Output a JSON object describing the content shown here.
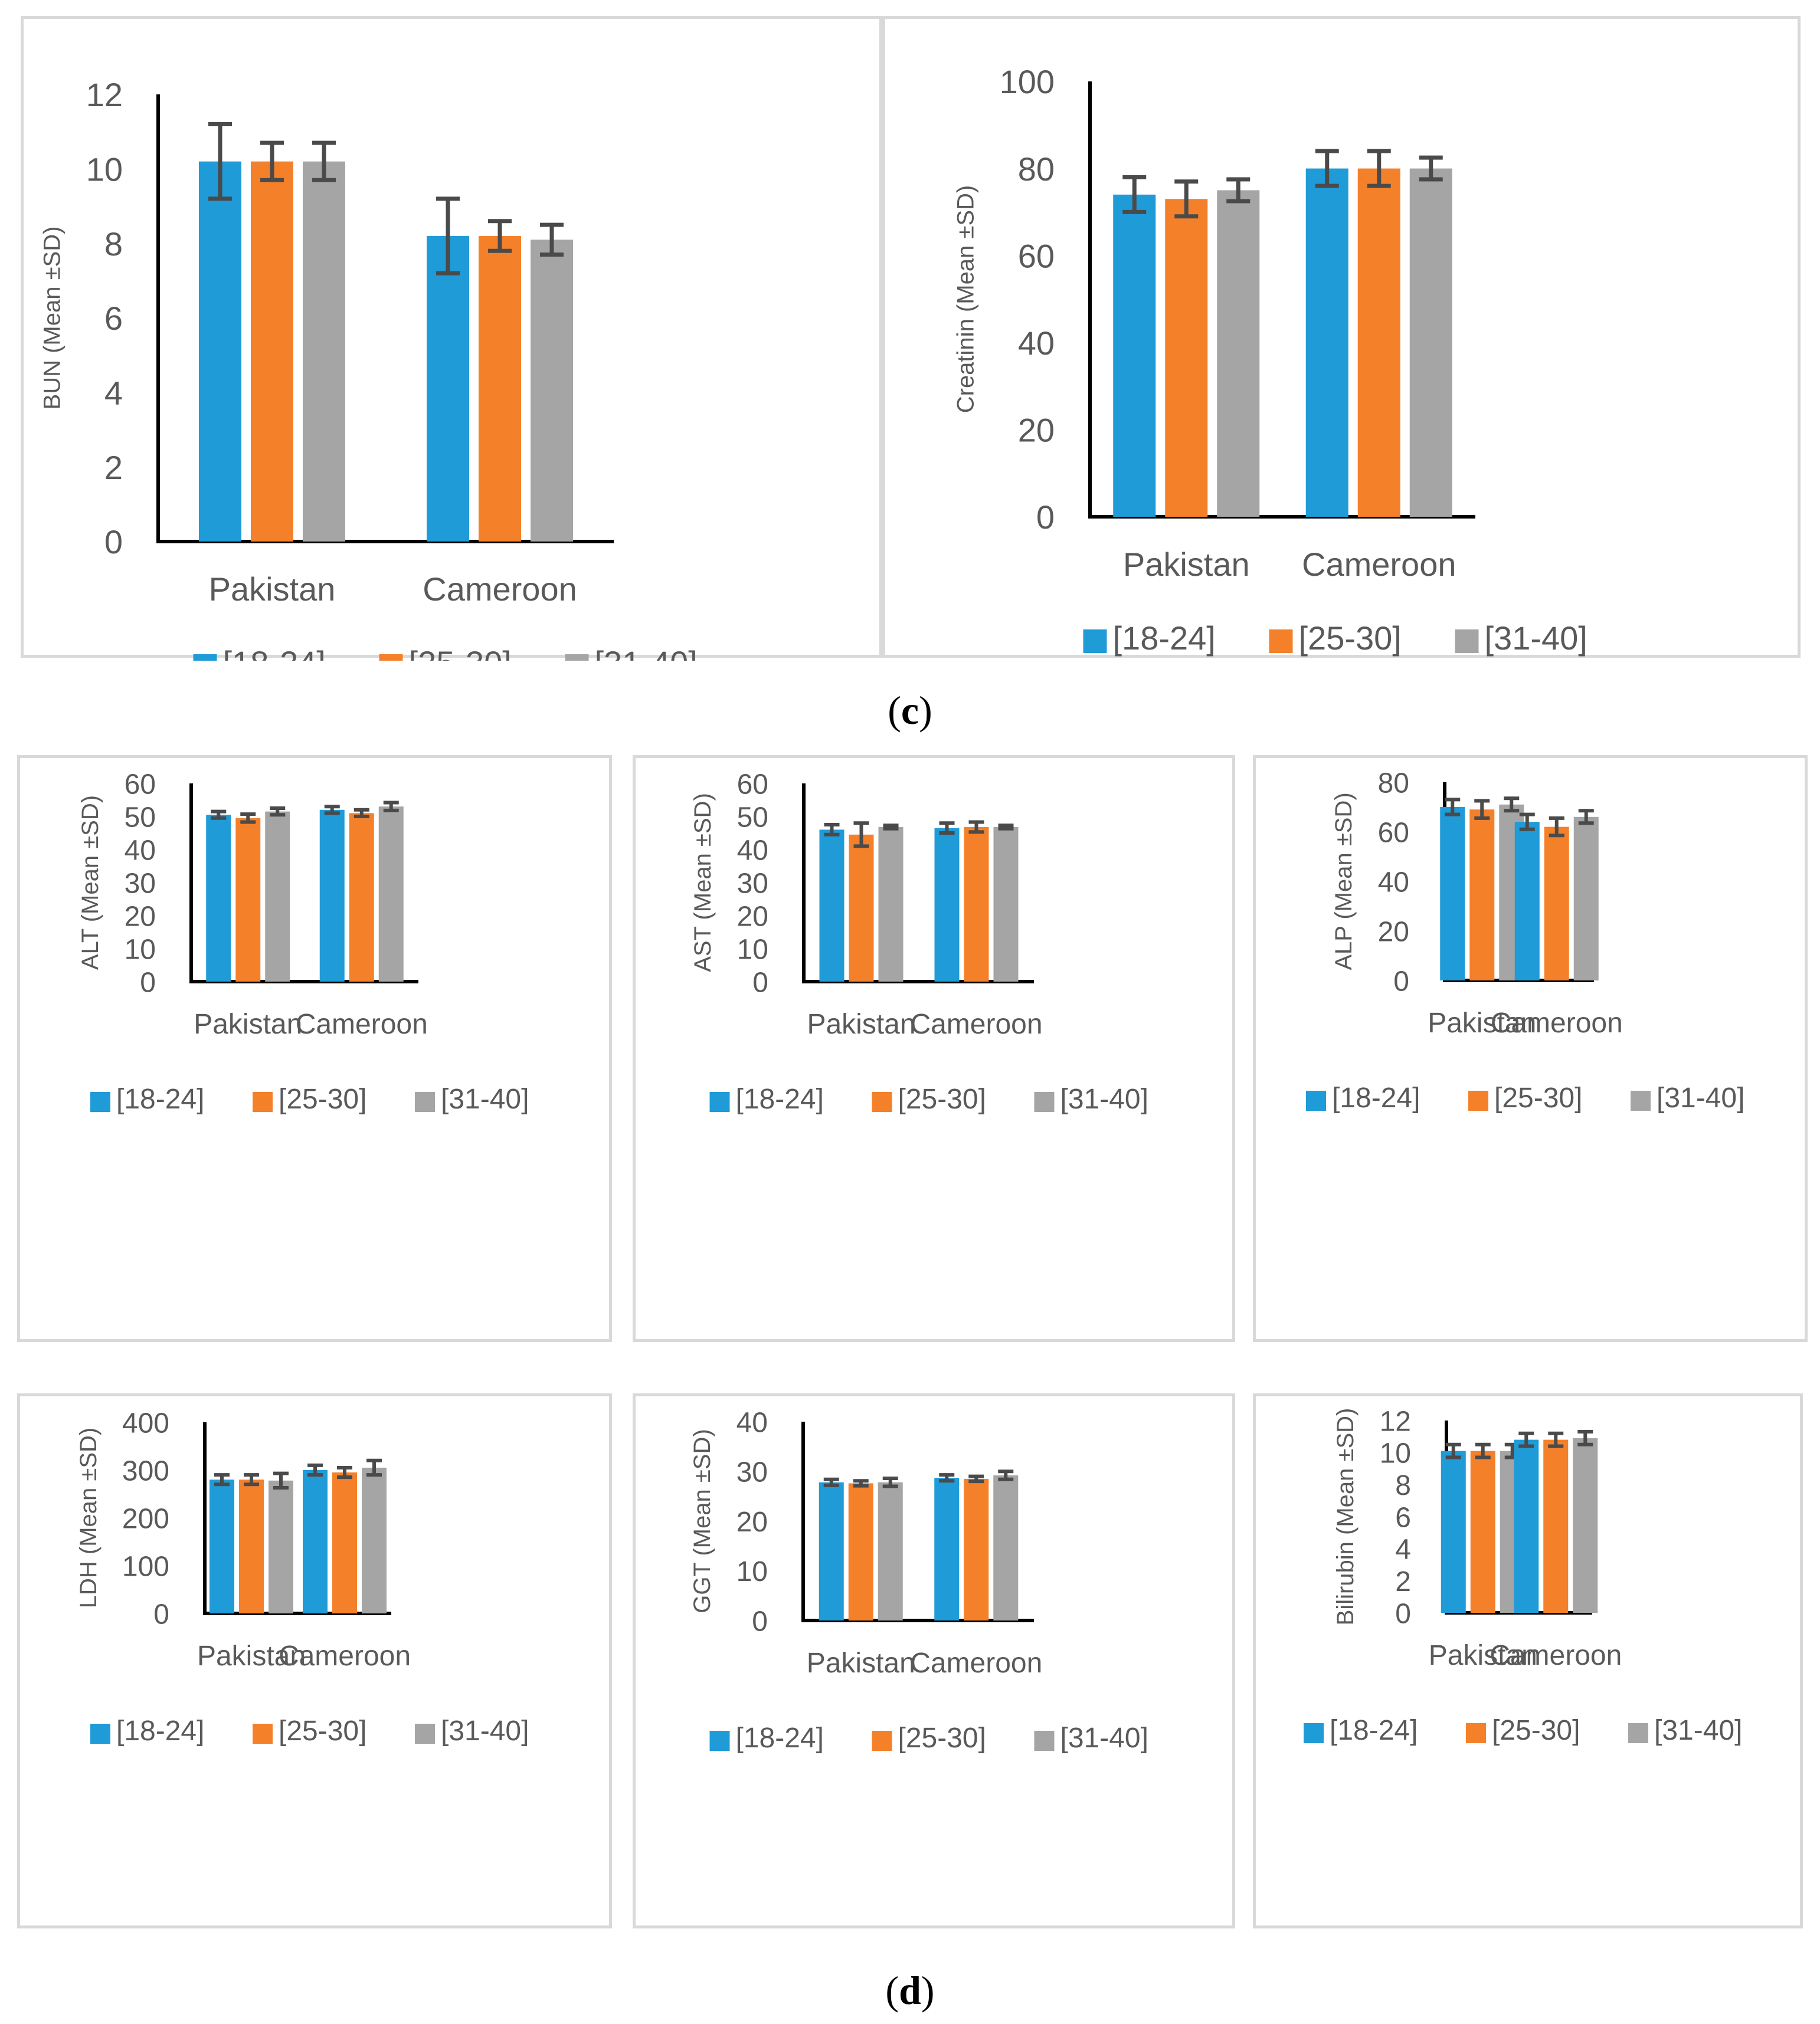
{
  "colors": {
    "a": "#1f9bd7",
    "b": "#f5802a",
    "c": "#a5a5a5",
    "err": "#4a4a4a",
    "axis": "#000000",
    "text": "#595959"
  },
  "legend": [
    "[18-24]",
    "[25-30]",
    "[31-40]"
  ],
  "captions": {
    "c": {
      "open": "(",
      "letter": "c",
      "close": ")"
    },
    "d": {
      "open": "(",
      "letter": "d",
      "close": ")"
    }
  },
  "chart_data": [
    {
      "id": "bun",
      "type": "bar",
      "ylabel": "BUN (Mean ±SD)",
      "ylim": [
        0,
        12
      ],
      "yticks": [
        0,
        2,
        4,
        6,
        8,
        10,
        12
      ],
      "categories": [
        "Pakistan",
        "Cameroon"
      ],
      "series": [
        {
          "name": "[18-24]",
          "values": [
            10.2,
            8.2
          ],
          "errors": [
            1.0,
            1.0
          ]
        },
        {
          "name": "[25-30]",
          "values": [
            10.2,
            8.2
          ],
          "errors": [
            0.5,
            0.4
          ]
        },
        {
          "name": "[31-40]",
          "values": [
            10.2,
            8.1
          ],
          "errors": [
            0.5,
            0.4
          ]
        }
      ]
    },
    {
      "id": "creatinin",
      "type": "bar",
      "ylabel": "Creatinin (Mean ±SD)",
      "ylim": [
        0,
        100
      ],
      "yticks": [
        0,
        20,
        40,
        60,
        80,
        100
      ],
      "categories": [
        "Pakistan",
        "Cameroon"
      ],
      "series": [
        {
          "name": "[18-24]",
          "values": [
            74,
            80
          ],
          "errors": [
            4,
            4
          ]
        },
        {
          "name": "[25-30]",
          "values": [
            73,
            80
          ],
          "errors": [
            4,
            4
          ]
        },
        {
          "name": "[31-40]",
          "values": [
            75,
            80
          ],
          "errors": [
            2.5,
            2.5
          ]
        }
      ]
    },
    {
      "id": "alt",
      "type": "bar",
      "ylabel": "ALT (Mean ±SD)",
      "ylim": [
        0,
        60
      ],
      "yticks": [
        0,
        10,
        20,
        30,
        40,
        50,
        60
      ],
      "categories": [
        "Pakistan",
        "Cameroon"
      ],
      "series": [
        {
          "name": "[18-24]",
          "values": [
            50.5,
            52
          ],
          "errors": [
            1,
            1
          ]
        },
        {
          "name": "[25-30]",
          "values": [
            49.5,
            51
          ],
          "errors": [
            1.2,
            1
          ]
        },
        {
          "name": "[31-40]",
          "values": [
            51.5,
            53
          ],
          "errors": [
            1,
            1.2
          ]
        }
      ]
    },
    {
      "id": "ast",
      "type": "bar",
      "ylabel": "AST (Mean ±SD)",
      "ylim": [
        0,
        60
      ],
      "yticks": [
        0,
        10,
        20,
        30,
        40,
        50,
        60
      ],
      "categories": [
        "Pakistan",
        "Cameroon"
      ],
      "series": [
        {
          "name": "[18-24]",
          "values": [
            46,
            46.5
          ],
          "errors": [
            1.5,
            1.5
          ]
        },
        {
          "name": "[25-30]",
          "values": [
            44.5,
            46.8
          ],
          "errors": [
            3.5,
            1.5
          ]
        },
        {
          "name": "[31-40]",
          "values": [
            46.8,
            46.8
          ],
          "errors": [
            0.5,
            0.5
          ]
        }
      ]
    },
    {
      "id": "alp",
      "type": "bar",
      "ylabel": "ALP (Mean ±SD)",
      "ylim": [
        0,
        80
      ],
      "yticks": [
        0,
        20,
        40,
        60,
        80
      ],
      "categories": [
        "Pakistan",
        "Cameroon"
      ],
      "series": [
        {
          "name": "[18-24]",
          "values": [
            70,
            64
          ],
          "errors": [
            3,
            3
          ]
        },
        {
          "name": "[25-30]",
          "values": [
            69,
            62
          ],
          "errors": [
            3.5,
            3.5
          ]
        },
        {
          "name": "[31-40]",
          "values": [
            71,
            66
          ],
          "errors": [
            2.5,
            2.5
          ]
        }
      ]
    },
    {
      "id": "ldh",
      "type": "bar",
      "ylabel": "LDH (Mean ±SD)",
      "ylim": [
        0,
        400
      ],
      "yticks": [
        0,
        100,
        200,
        300,
        400
      ],
      "categories": [
        "Pakistan",
        "Cameroon"
      ],
      "series": [
        {
          "name": "[18-24]",
          "values": [
            280,
            300
          ],
          "errors": [
            10,
            10
          ]
        },
        {
          "name": "[25-30]",
          "values": [
            280,
            295
          ],
          "errors": [
            10,
            10
          ]
        },
        {
          "name": "[31-40]",
          "values": [
            278,
            305
          ],
          "errors": [
            15,
            15
          ]
        }
      ]
    },
    {
      "id": "ggt",
      "type": "bar",
      "ylabel": "GGT (Mean ±SD)",
      "ylim": [
        0,
        40
      ],
      "yticks": [
        0,
        10,
        20,
        30,
        40
      ],
      "categories": [
        "Pakistan",
        "Cameroon"
      ],
      "series": [
        {
          "name": "[18-24]",
          "values": [
            27.8,
            28.7
          ],
          "errors": [
            0.6,
            0.6
          ]
        },
        {
          "name": "[25-30]",
          "values": [
            27.6,
            28.5
          ],
          "errors": [
            0.5,
            0.5
          ]
        },
        {
          "name": "[31-40]",
          "values": [
            27.8,
            29.2
          ],
          "errors": [
            0.8,
            0.8
          ]
        }
      ]
    },
    {
      "id": "bilirubin",
      "type": "bar",
      "ylabel": "Bilirubin (Mean ±SD)",
      "ylim": [
        0,
        12
      ],
      "yticks": [
        0,
        2,
        4,
        6,
        8,
        10,
        12
      ],
      "categories": [
        "Pakistan",
        "Cameroon"
      ],
      "series": [
        {
          "name": "[18-24]",
          "values": [
            10.1,
            10.8
          ],
          "errors": [
            0.4,
            0.4
          ]
        },
        {
          "name": "[25-30]",
          "values": [
            10.1,
            10.8
          ],
          "errors": [
            0.4,
            0.4
          ]
        },
        {
          "name": "[31-40]",
          "values": [
            10.1,
            10.9
          ],
          "errors": [
            0.4,
            0.4
          ]
        }
      ]
    }
  ]
}
